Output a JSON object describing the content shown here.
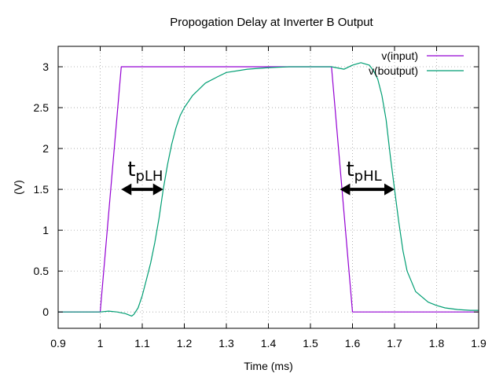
{
  "chart_data": {
    "type": "line",
    "title": "Propogation Delay at Inverter B Output",
    "xlabel": "Time (ms)",
    "ylabel": "(V)",
    "xlim": [
      0.9,
      1.9
    ],
    "ylim": [
      -0.2,
      3.25
    ],
    "xticks": [
      0.9,
      1.0,
      1.1,
      1.2,
      1.3,
      1.4,
      1.5,
      1.6,
      1.7,
      1.8,
      1.9
    ],
    "xtick_labels": [
      "0.9",
      "1",
      "1.1",
      "1.2",
      "1.3",
      "1.4",
      "1.5",
      "1.6",
      "1.7",
      "1.8",
      "1.9"
    ],
    "yticks": [
      0,
      0.5,
      1,
      1.5,
      2,
      2.5,
      3
    ],
    "ytick_labels": [
      "0",
      "0.5",
      "1",
      "1.5",
      "2",
      "2.5",
      "3"
    ],
    "grid": true,
    "legend_position": "top-right",
    "series": [
      {
        "name": "v(input)",
        "color": "#9400d3",
        "x": [
          0.9,
          1.0,
          1.05,
          1.55,
          1.6,
          1.9
        ],
        "y": [
          0.0,
          0.0,
          3.0,
          3.0,
          0.0,
          0.0
        ]
      },
      {
        "name": "v(boutput)",
        "color": "#009e73",
        "x": [
          0.9,
          1.0,
          1.02,
          1.04,
          1.06,
          1.075,
          1.08,
          1.09,
          1.1,
          1.11,
          1.12,
          1.13,
          1.14,
          1.15,
          1.16,
          1.17,
          1.18,
          1.19,
          1.2,
          1.22,
          1.25,
          1.28,
          1.3,
          1.35,
          1.4,
          1.45,
          1.5,
          1.55,
          1.58,
          1.6,
          1.62,
          1.64,
          1.65,
          1.66,
          1.67,
          1.68,
          1.69,
          1.7,
          1.71,
          1.72,
          1.73,
          1.75,
          1.78,
          1.8,
          1.82,
          1.85,
          1.88,
          1.9
        ],
        "y": [
          0.0,
          0.0,
          0.01,
          0.0,
          -0.02,
          -0.05,
          -0.03,
          0.05,
          0.2,
          0.4,
          0.6,
          0.85,
          1.15,
          1.5,
          1.8,
          2.05,
          2.25,
          2.4,
          2.5,
          2.65,
          2.8,
          2.88,
          2.93,
          2.97,
          2.99,
          3.0,
          3.0,
          3.0,
          2.97,
          3.02,
          3.05,
          3.02,
          2.95,
          2.85,
          2.65,
          2.35,
          1.9,
          1.5,
          1.1,
          0.75,
          0.5,
          0.25,
          0.12,
          0.08,
          0.05,
          0.03,
          0.02,
          0.02
        ]
      }
    ],
    "annotations": [
      {
        "main": "t",
        "sub": "pLH",
        "x_from": 1.05,
        "x_to": 1.15,
        "y": 1.5
      },
      {
        "main": "t",
        "sub": "pHL",
        "x_from": 1.57,
        "x_to": 1.7,
        "y": 1.5
      }
    ]
  }
}
